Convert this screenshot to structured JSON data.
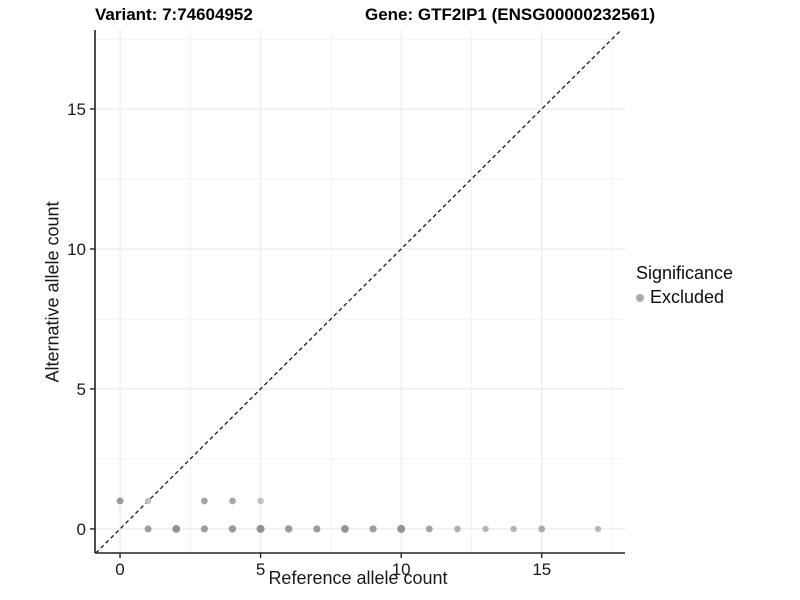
{
  "header": {
    "variant_title": "Variant: 7:74604952",
    "gene_title": "Gene: GTF2IP1 (ENSG00000232561)"
  },
  "legend": {
    "title": "Significance",
    "items": [
      {
        "label": "Excluded",
        "color": "#ababab"
      }
    ]
  },
  "chart_data": {
    "type": "scatter",
    "title": "Variant: 7:74604952 / Gene: GTF2IP1 (ENSG00000232561)",
    "xlabel": "Reference allele count",
    "ylabel": "Alternative allele count",
    "x_range": [
      -0.89,
      17.96
    ],
    "y_range": [
      -0.86,
      17.82
    ],
    "x_ticks": {
      "major": [
        0,
        5,
        10,
        15
      ],
      "labels": [
        "0",
        "5",
        "10",
        "15"
      ],
      "minor": [
        2.5,
        7.5,
        12.5,
        17.5
      ]
    },
    "y_ticks": {
      "major": [
        0,
        5,
        10,
        15
      ],
      "labels": [
        "0",
        "5",
        "10",
        "15"
      ],
      "minor": [
        2.5,
        7.5,
        12.5,
        17.5
      ]
    },
    "grid": true,
    "legend_position": "right",
    "reference_line": {
      "kind": "identity",
      "style": "dashed",
      "color": "#1a1a1a"
    },
    "series": [
      {
        "name": "Excluded",
        "points": [
          {
            "x": 0,
            "y": 1,
            "shade": "#9b9b9b",
            "r": 3.5
          },
          {
            "x": 1,
            "y": 1,
            "shade": "#c1c1c1",
            "r": 3.2
          },
          {
            "x": 3,
            "y": 1,
            "shade": "#a5a5a5",
            "r": 3.4
          },
          {
            "x": 4,
            "y": 1,
            "shade": "#aaaaaa",
            "r": 3.4
          },
          {
            "x": 5,
            "y": 1,
            "shade": "#c0c0c0",
            "r": 3.2
          },
          {
            "x": 1,
            "y": 0,
            "shade": "#9e9e9e",
            "r": 3.5
          },
          {
            "x": 2,
            "y": 0,
            "shade": "#939393",
            "r": 3.9
          },
          {
            "x": 3,
            "y": 0,
            "shade": "#9c9c9c",
            "r": 3.6
          },
          {
            "x": 4,
            "y": 0,
            "shade": "#999999",
            "r": 3.7
          },
          {
            "x": 5,
            "y": 0,
            "shade": "#929292",
            "r": 4.0
          },
          {
            "x": 6,
            "y": 0,
            "shade": "#9b9b9b",
            "r": 3.7
          },
          {
            "x": 7,
            "y": 0,
            "shade": "#9c9c9c",
            "r": 3.6
          },
          {
            "x": 8,
            "y": 0,
            "shade": "#959595",
            "r": 3.9
          },
          {
            "x": 9,
            "y": 0,
            "shade": "#9d9d9d",
            "r": 3.6
          },
          {
            "x": 10,
            "y": 0,
            "shade": "#939393",
            "r": 4.0
          },
          {
            "x": 11,
            "y": 0,
            "shade": "#a3a3a3",
            "r": 3.4
          },
          {
            "x": 12,
            "y": 0,
            "shade": "#b0b0b0",
            "r": 3.3
          },
          {
            "x": 13,
            "y": 0,
            "shade": "#b5b5b5",
            "r": 3.2
          },
          {
            "x": 14,
            "y": 0,
            "shade": "#b3b3b3",
            "r": 3.2
          },
          {
            "x": 15,
            "y": 0,
            "shade": "#a9a9a9",
            "r": 3.4
          },
          {
            "x": 17,
            "y": 0,
            "shade": "#b9b9b9",
            "r": 3.2
          }
        ]
      }
    ],
    "colors": {
      "grid_major": "#e7e7e7",
      "grid_minor": "#f2f2f2",
      "axis_line": "#222222",
      "tick_label": "#1a1a1a",
      "point_default": "#9e9e9e"
    }
  }
}
